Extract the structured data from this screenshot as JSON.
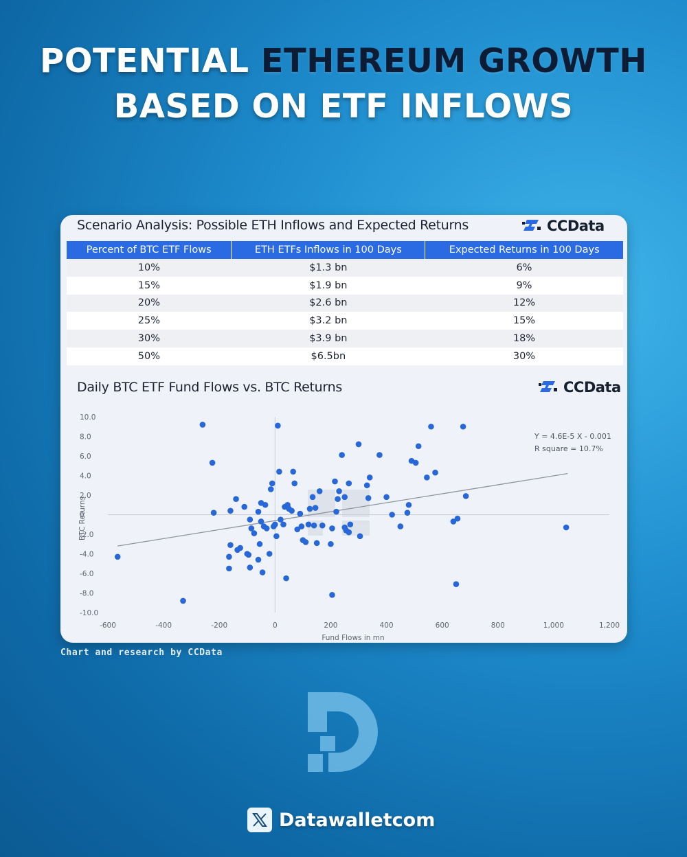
{
  "headline": {
    "line1_white": "POTENTIAL ",
    "line1_dark": "ETHEREUM GROWTH",
    "line2": "BASED ON ETF INFLOWS"
  },
  "scenario": {
    "title": "Scenario Analysis: Possible ETH Inflows and Expected Returns",
    "logo_text": "CCData",
    "headers": [
      "Percent of BTC ETF Flows",
      "ETH ETFs Inflows in 100 Days",
      "Expected Returns in 100 Days"
    ],
    "rows": [
      [
        "10%",
        "$1.3 bn",
        "6%"
      ],
      [
        "15%",
        "$1.9 bn",
        "9%"
      ],
      [
        "20%",
        "$2.6 bn",
        "12%"
      ],
      [
        "25%",
        "$3.2 bn",
        "15%"
      ],
      [
        "30%",
        "$3.9 bn",
        "18%"
      ],
      [
        "50%",
        "$6.5bn",
        "30%"
      ]
    ]
  },
  "chart_data": {
    "type": "scatter",
    "title": "Daily BTC ETF Fund Flows vs. BTC Returns",
    "logo_text": "CCData",
    "xlabel": "Fund Flows in mn",
    "ylabel": "BTC Returns",
    "xlim": [
      -600,
      1200
    ],
    "ylim": [
      -10,
      10
    ],
    "x_ticks": [
      "-600",
      "-400",
      "-200",
      "0",
      "200",
      "400",
      "600",
      "800",
      "1,000",
      "1,200"
    ],
    "y_ticks": [
      "10.0",
      "8.0",
      "6.0",
      "4.0",
      "2.0",
      "0",
      "-2.0",
      "-4.0",
      "-6.0",
      "-8.0",
      "-10.0"
    ],
    "grid": false,
    "equation": "Y = 4.6E-5 X - 0.001",
    "r_square": "R square = 10.7%",
    "trendline": {
      "x": [
        -565,
        1050
      ],
      "y": [
        -3.2,
        4.2
      ]
    },
    "series_color": "#2767d8",
    "points": [
      [
        -565,
        -4.3
      ],
      [
        -330,
        -8.8
      ],
      [
        -260,
        9.2
      ],
      [
        -225,
        5.3
      ],
      [
        -220,
        0.2
      ],
      [
        -165,
        -4.3
      ],
      [
        -165,
        -5.5
      ],
      [
        -160,
        -3.1
      ],
      [
        -160,
        0.4
      ],
      [
        -140,
        1.6
      ],
      [
        -135,
        -3.6
      ],
      [
        -125,
        -3.4
      ],
      [
        -110,
        0.8
      ],
      [
        -100,
        -4.0
      ],
      [
        -95,
        -4.1
      ],
      [
        -90,
        -5.4
      ],
      [
        -90,
        -0.5
      ],
      [
        -85,
        -1.4
      ],
      [
        -75,
        -1.9
      ],
      [
        -60,
        -4.6
      ],
      [
        -60,
        0.3
      ],
      [
        -55,
        -3.0
      ],
      [
        -50,
        -0.7
      ],
      [
        -50,
        1.2
      ],
      [
        -45,
        -5.9
      ],
      [
        -40,
        -1.2
      ],
      [
        -35,
        1.0
      ],
      [
        -30,
        -1.4
      ],
      [
        -20,
        -4.0
      ],
      [
        -15,
        2.6
      ],
      [
        -10,
        3.2
      ],
      [
        -5,
        -1.2
      ],
      [
        0,
        -1.0
      ],
      [
        5,
        -2.2
      ],
      [
        10,
        9.1
      ],
      [
        15,
        4.4
      ],
      [
        20,
        -0.5
      ],
      [
        30,
        -1.0
      ],
      [
        35,
        0.8
      ],
      [
        40,
        -6.5
      ],
      [
        45,
        1.0
      ],
      [
        50,
        0.6
      ],
      [
        60,
        0.4
      ],
      [
        65,
        4.4
      ],
      [
        70,
        3.2
      ],
      [
        80,
        -1.5
      ],
      [
        90,
        0.1
      ],
      [
        95,
        -1.2
      ],
      [
        100,
        -2.6
      ],
      [
        110,
        -2.8
      ],
      [
        120,
        -1.0
      ],
      [
        125,
        0.6
      ],
      [
        135,
        1.8
      ],
      [
        140,
        -1.1
      ],
      [
        145,
        0.7
      ],
      [
        150,
        -2.9
      ],
      [
        160,
        2.4
      ],
      [
        170,
        -1.1
      ],
      [
        200,
        -3.0
      ],
      [
        205,
        -8.2
      ],
      [
        205,
        -1.4
      ],
      [
        215,
        3.4
      ],
      [
        220,
        0.3
      ],
      [
        225,
        1.6
      ],
      [
        230,
        2.4
      ],
      [
        240,
        6.1
      ],
      [
        250,
        -1.3
      ],
      [
        250,
        1.8
      ],
      [
        255,
        -1.6
      ],
      [
        265,
        3.2
      ],
      [
        265,
        -1.8
      ],
      [
        270,
        -1.0
      ],
      [
        300,
        7.2
      ],
      [
        305,
        -2.2
      ],
      [
        330,
        3.0
      ],
      [
        335,
        1.7
      ],
      [
        340,
        3.8
      ],
      [
        375,
        6.1
      ],
      [
        400,
        1.8
      ],
      [
        420,
        0.0
      ],
      [
        450,
        -1.2
      ],
      [
        475,
        0.2
      ],
      [
        480,
        1.0
      ],
      [
        490,
        5.5
      ],
      [
        505,
        5.3
      ],
      [
        515,
        7.0
      ],
      [
        545,
        3.8
      ],
      [
        560,
        9.0
      ],
      [
        575,
        4.3
      ],
      [
        640,
        -0.7
      ],
      [
        650,
        -7.1
      ],
      [
        655,
        -0.4
      ],
      [
        675,
        9.0
      ],
      [
        685,
        1.9
      ],
      [
        1045,
        -1.3
      ]
    ]
  },
  "credit": "Chart and research by CCData",
  "brand": {
    "social_icon": "x-logo-icon",
    "handle": "Datawalletcom"
  }
}
